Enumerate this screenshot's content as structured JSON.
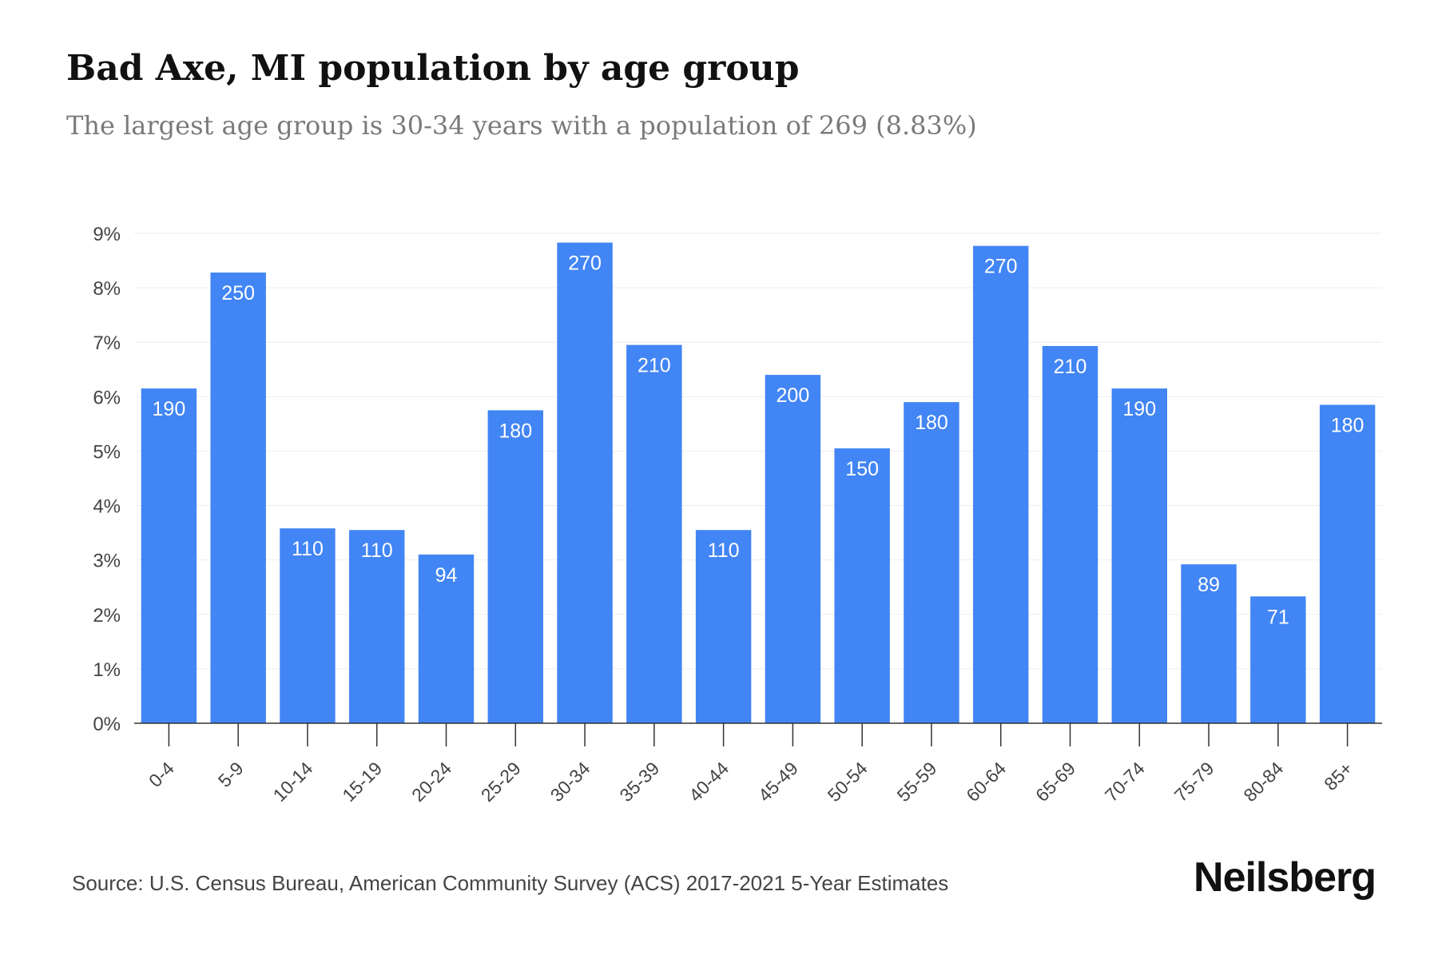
{
  "header": {
    "title": "Bad Axe, MI population by age group",
    "subtitle": "The largest age group is 30-34 years with a population of 269 (8.83%)"
  },
  "footer": {
    "source": "Source: U.S. Census Bureau, American Community Survey (ACS) 2017-2021 5-Year Estimates",
    "brand": "Neilsberg"
  },
  "colors": {
    "bar": "#4285f4",
    "grid": "#eeeeee",
    "axis": "#333333",
    "tick_text": "#444444",
    "label_text": "#ffffff"
  },
  "chart_data": {
    "type": "bar",
    "title": "Bad Axe, MI population by age group",
    "xlabel": "",
    "ylabel": "",
    "ylim": [
      0,
      9
    ],
    "yticks": [
      "0%",
      "1%",
      "2%",
      "3%",
      "4%",
      "5%",
      "6%",
      "7%",
      "8%",
      "9%"
    ],
    "grid": true,
    "legend": "none",
    "categories": [
      "0-4",
      "5-9",
      "10-14",
      "15-19",
      "20-24",
      "25-29",
      "30-34",
      "35-39",
      "40-44",
      "45-49",
      "50-54",
      "55-59",
      "60-64",
      "65-69",
      "70-74",
      "75-79",
      "80-84",
      "85+"
    ],
    "values": [
      6.15,
      8.28,
      3.58,
      3.55,
      3.1,
      5.75,
      8.83,
      6.95,
      3.55,
      6.4,
      5.05,
      5.9,
      8.77,
      6.93,
      6.15,
      2.92,
      2.33,
      5.85
    ],
    "data_labels": [
      "190",
      "250",
      "110",
      "110",
      "94",
      "180",
      "270",
      "210",
      "110",
      "200",
      "150",
      "180",
      "270",
      "210",
      "190",
      "89",
      "71",
      "180"
    ]
  }
}
